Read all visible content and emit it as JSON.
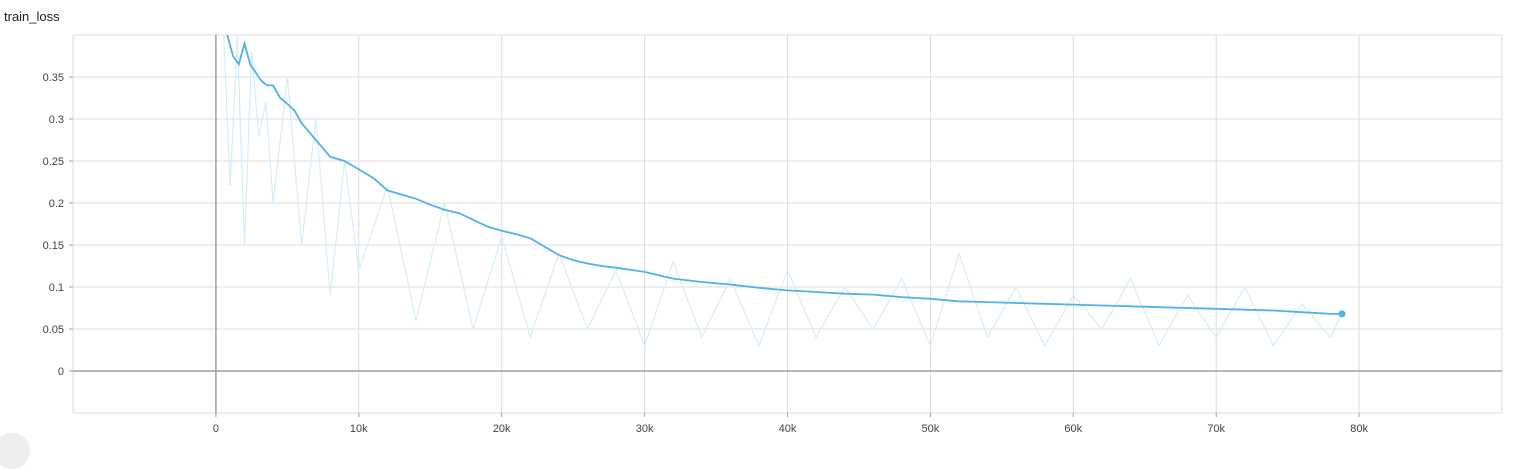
{
  "chart_data": {
    "type": "line",
    "title": "train_loss",
    "xlim": [
      -10000,
      90000
    ],
    "ylim": [
      -0.05,
      0.4
    ],
    "x_ticks": [
      {
        "value": 0,
        "label": "0"
      },
      {
        "value": 10000,
        "label": "10k"
      },
      {
        "value": 20000,
        "label": "20k"
      },
      {
        "value": 30000,
        "label": "30k"
      },
      {
        "value": 40000,
        "label": "40k"
      },
      {
        "value": 50000,
        "label": "50k"
      },
      {
        "value": 60000,
        "label": "60k"
      },
      {
        "value": 70000,
        "label": "70k"
      },
      {
        "value": 80000,
        "label": "80k"
      }
    ],
    "y_ticks": [
      {
        "value": 0.35,
        "label": "0.35"
      },
      {
        "value": 0.3,
        "label": "0.3"
      },
      {
        "value": 0.25,
        "label": "0.25"
      },
      {
        "value": 0.2,
        "label": "0.2"
      },
      {
        "value": 0.15,
        "label": "0.15"
      },
      {
        "value": 0.1,
        "label": "0.1"
      },
      {
        "value": 0.05,
        "label": "0.05"
      },
      {
        "value": 0.0,
        "label": "0"
      }
    ],
    "grid": true,
    "legend": "none",
    "colors": {
      "smoothed": "#4fb3e8",
      "raw": "#d6ecfa",
      "grid": "#dddddd",
      "zero_axis": "#9e9e9e"
    },
    "series": [
      {
        "role": "raw",
        "x": [
          500,
          1000,
          1500,
          2000,
          2500,
          3000,
          3500,
          4000,
          5000,
          6000,
          7000,
          8000,
          9000,
          10000,
          12000,
          14000,
          16000,
          18000,
          20000,
          22000,
          24000,
          26000,
          28000,
          30000,
          32000,
          34000,
          36000,
          38000,
          40000,
          42000,
          44000,
          46000,
          48000,
          50000,
          52000,
          54000,
          56000,
          58000,
          60000,
          62000,
          64000,
          66000,
          68000,
          70000,
          72000,
          74000,
          76000,
          78000,
          78800
        ],
        "y": [
          0.42,
          0.22,
          0.4,
          0.15,
          0.38,
          0.28,
          0.32,
          0.2,
          0.35,
          0.15,
          0.3,
          0.09,
          0.25,
          0.12,
          0.22,
          0.06,
          0.2,
          0.05,
          0.16,
          0.04,
          0.14,
          0.05,
          0.12,
          0.03,
          0.13,
          0.04,
          0.11,
          0.03,
          0.12,
          0.04,
          0.1,
          0.05,
          0.11,
          0.03,
          0.14,
          0.04,
          0.1,
          0.03,
          0.09,
          0.05,
          0.11,
          0.03,
          0.09,
          0.04,
          0.1,
          0.03,
          0.08,
          0.04,
          0.07
        ]
      },
      {
        "role": "smoothed",
        "x": [
          800,
          1200,
          1600,
          2000,
          2400,
          2800,
          3200,
          3600,
          4000,
          4500,
          5000,
          5500,
          6000,
          6500,
          7000,
          7500,
          8000,
          9000,
          10000,
          11000,
          12000,
          13000,
          14000,
          15000,
          16000,
          17000,
          18000,
          19000,
          20000,
          21000,
          22000,
          23000,
          24000,
          25000,
          26000,
          27000,
          28000,
          30000,
          32000,
          34000,
          36000,
          38000,
          40000,
          42000,
          44000,
          46000,
          48000,
          50000,
          52000,
          54000,
          56000,
          58000,
          60000,
          62000,
          64000,
          66000,
          68000,
          70000,
          72000,
          74000,
          76000,
          78000,
          78800
        ],
        "y": [
          0.4,
          0.375,
          0.365,
          0.39,
          0.365,
          0.355,
          0.345,
          0.34,
          0.34,
          0.325,
          0.318,
          0.31,
          0.295,
          0.285,
          0.275,
          0.265,
          0.255,
          0.25,
          0.24,
          0.23,
          0.215,
          0.21,
          0.205,
          0.198,
          0.192,
          0.188,
          0.18,
          0.172,
          0.167,
          0.163,
          0.158,
          0.148,
          0.138,
          0.132,
          0.128,
          0.125,
          0.123,
          0.118,
          0.11,
          0.106,
          0.103,
          0.099,
          0.096,
          0.094,
          0.092,
          0.091,
          0.088,
          0.086,
          0.083,
          0.082,
          0.081,
          0.08,
          0.079,
          0.078,
          0.077,
          0.076,
          0.075,
          0.074,
          0.073,
          0.072,
          0.07,
          0.068,
          0.068
        ]
      }
    ]
  }
}
